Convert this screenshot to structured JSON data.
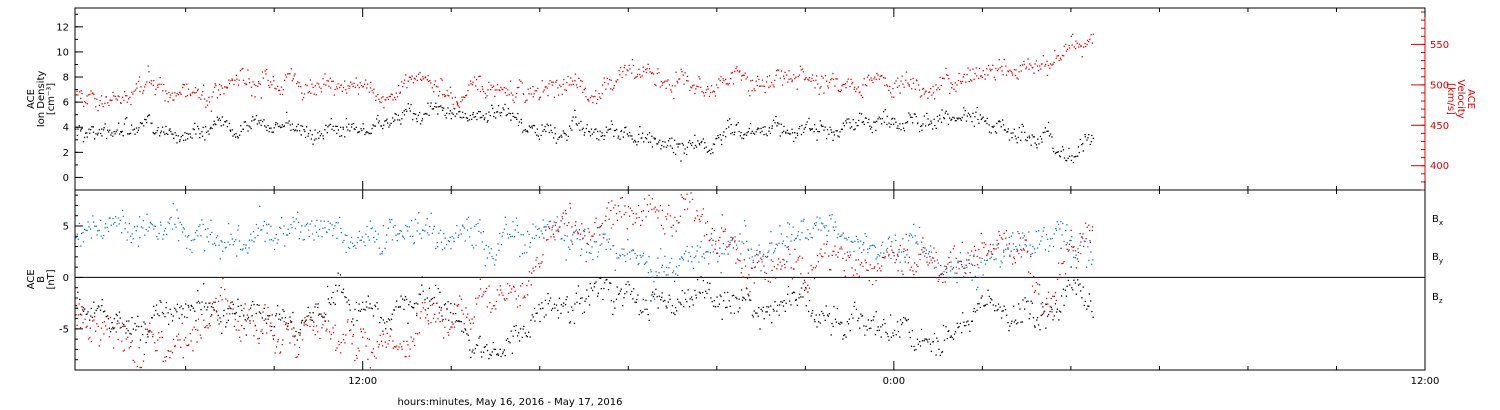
{
  "colors": {
    "axis": "#000000",
    "density": "#000000",
    "velocity": "#e00000",
    "bx": "#000000",
    "by": "#0a78d2",
    "bz": "#e00000"
  },
  "xaxis": {
    "label": "hours:minutes, May 16, 2016 - May 17, 2016",
    "range_hours": [
      5.5,
      36.0
    ],
    "data_end_hour": 28.5,
    "ticks": [
      {
        "hour": 12,
        "label": "12:00"
      },
      {
        "hour": 24,
        "label": "0:00"
      },
      {
        "hour": 36,
        "label": "12:00"
      }
    ],
    "minor_tick_hours": [
      8,
      10,
      14,
      16,
      18,
      20,
      22,
      26,
      28,
      30,
      32,
      34
    ]
  },
  "chart_data": [
    {
      "type": "scatter",
      "panel": "top",
      "left_axis": {
        "title_lines": [
          "ACE",
          "Ion Density",
          "[cm⁻³]"
        ],
        "range": [
          -1,
          13.5
        ],
        "ticks": [
          0,
          2,
          4,
          6,
          8,
          10,
          12
        ]
      },
      "right_axis": {
        "title_lines": [
          "ACE",
          "Velocity",
          "[km/s]"
        ],
        "range": [
          370,
          595
        ],
        "ticks": [
          400,
          450,
          500,
          550
        ]
      },
      "series": [
        {
          "key": "density",
          "axis": "left",
          "color": "#000000",
          "x": [
            5.5,
            6.5,
            7.5,
            8.5,
            9.5,
            10.5,
            11.5,
            12.5,
            13.5,
            14.5,
            15.5,
            16.5,
            17.5,
            18.5,
            19.5,
            20.5,
            21.5,
            22.5,
            23.5,
            24.5,
            25.5,
            26.5,
            27.5,
            28.0,
            28.5
          ],
          "y": [
            3.8,
            4.2,
            3.6,
            3.2,
            3.8,
            4.2,
            3.9,
            4.3,
            5.0,
            4.6,
            4.5,
            4.1,
            3.5,
            2.8,
            2.6,
            3.6,
            4.1,
            3.7,
            4.3,
            4.9,
            4.7,
            3.6,
            3.5,
            2.0,
            3.5
          ],
          "jitter": 0.8,
          "density": 42
        },
        {
          "key": "velocity",
          "axis": "right",
          "color": "#e00000",
          "x": [
            5.5,
            6.5,
            7.5,
            8.5,
            9.5,
            10.5,
            11.5,
            12.5,
            13.5,
            14.5,
            15.5,
            16.5,
            17.5,
            18.5,
            19.5,
            20.5,
            21.5,
            22.5,
            23.5,
            24.5,
            25.5,
            26.5,
            27.5,
            28.0,
            28.5
          ],
          "y": [
            490,
            480,
            492,
            490,
            505,
            510,
            498,
            495,
            500,
            487,
            485,
            498,
            508,
            513,
            492,
            502,
            512,
            512,
            508,
            494,
            508,
            520,
            530,
            540,
            548
          ],
          "jitter": 14,
          "density": 42
        }
      ]
    },
    {
      "type": "scatter",
      "panel": "bottom",
      "left_axis": {
        "title_lines": [
          "ACE",
          "B",
          "[nT]"
        ],
        "range": [
          -9.0,
          8.5
        ],
        "ticks": [
          -5,
          0,
          5
        ]
      },
      "legend": [
        {
          "label": "B",
          "sub": "x",
          "color": "#000000"
        },
        {
          "label": "B",
          "sub": "y",
          "color": "#0a78d2"
        },
        {
          "label": "B",
          "sub": "z",
          "color": "#e00000"
        }
      ],
      "series": [
        {
          "key": "bx",
          "color": "#000000",
          "x": [
            5.5,
            6.5,
            7.5,
            8.5,
            9.5,
            10.5,
            11.5,
            12.5,
            13.5,
            14.5,
            15.5,
            16.5,
            17.5,
            18.5,
            19.5,
            20.5,
            21.5,
            22.5,
            23.5,
            24.5,
            25.5,
            26.5,
            27.5,
            28.0,
            28.5
          ],
          "y": [
            -3,
            -5,
            -4,
            -3,
            -4,
            -5,
            -2,
            -4,
            -3,
            -6,
            -5,
            -2,
            -1,
            -2,
            -3,
            -3,
            -2,
            -4,
            -4,
            -5,
            -5,
            -4,
            -4,
            -1,
            -2
          ],
          "jitter": 1.6,
          "density": 40
        },
        {
          "key": "by",
          "color": "#0a78d2",
          "x": [
            5.5,
            6.5,
            7.5,
            8.5,
            9.5,
            10.5,
            11.5,
            12.5,
            13.5,
            14.5,
            15.5,
            16.5,
            17.5,
            18.5,
            19.5,
            20.5,
            21.5,
            22.5,
            23.5,
            24.5,
            25.5,
            26.5,
            27.5,
            28.0,
            28.5
          ],
          "y": [
            5,
            4,
            5,
            4,
            3,
            5,
            4,
            5,
            5,
            4,
            5,
            4,
            3,
            2,
            1,
            3,
            4,
            5,
            4,
            3,
            1,
            2,
            3,
            4,
            3
          ],
          "jitter": 1.8,
          "density": 40
        },
        {
          "key": "bz",
          "color": "#e00000",
          "x": [
            5.5,
            6.5,
            7.5,
            8.5,
            9.5,
            10.5,
            11.5,
            12.5,
            13.5,
            14.5,
            15.5,
            16.5,
            17.5,
            18.5,
            19.5,
            20.5,
            21.5,
            22.5,
            23.5,
            24.5,
            25.5,
            26.5,
            27.5,
            28.0,
            28.5
          ],
          "y": [
            -4,
            -5,
            -6,
            -5,
            -5,
            -6,
            -5,
            -6,
            -4,
            -3,
            -2,
            5,
            6,
            6,
            5,
            1,
            1,
            1,
            2,
            2,
            1,
            2,
            -1,
            3,
            5
          ],
          "jitter": 2.0,
          "density": 40
        }
      ]
    }
  ]
}
